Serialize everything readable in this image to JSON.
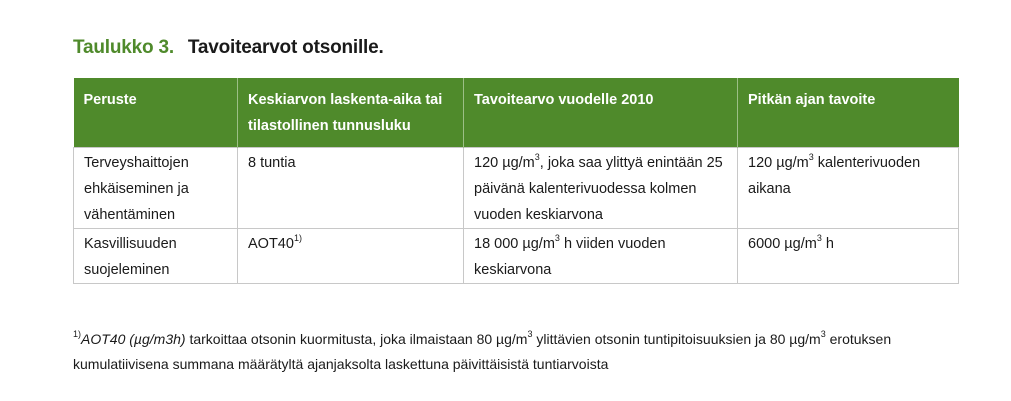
{
  "caption": {
    "number": "Taulukko 3.",
    "title": "Tavoitearvot otsonille."
  },
  "table": {
    "headers": [
      "Peruste",
      "Keskiarvon laskenta-aika tai tilastollinen tunnusluku",
      "Tavoitearvo vuodelle 2010",
      "Pitkän ajan tavoite"
    ],
    "rows": [
      {
        "peruste": "Terveyshaittojen ehkäiseminen ja vähentäminen",
        "laskenta": "8 tuntia",
        "laskenta_sup": "",
        "tavoite2010_pre": "120 µg/m",
        "tavoite2010_sup": "3",
        "tavoite2010_post": ", joka saa ylittyä enintään 25 päivänä kalenterivuodessa kolmen vuoden keskiarvona",
        "pitka_pre": "120 µg/m",
        "pitka_sup": "3",
        "pitka_post": " kalenterivuoden aikana"
      },
      {
        "peruste": "Kasvillisuuden suojeleminen",
        "laskenta": "AOT40",
        "laskenta_sup": "1)",
        "tavoite2010_pre": "18 000 µg/m",
        "tavoite2010_sup": "3",
        "tavoite2010_post": " h viiden vuoden keskiarvona",
        "pitka_pre": "6000 µg/m",
        "pitka_sup": "3",
        "pitka_post": " h"
      }
    ]
  },
  "footnote": {
    "mark": "1)",
    "term": "AOT40 (µg/m3h)",
    "text_a": " tarkoittaa otsonin kuormitusta, joka ilmaistaan 80 µg/m",
    "sup_a": "3",
    "text_b": " ylittävien otsonin tuntipitoisuuksien ja 80 µg/m",
    "sup_b": "3",
    "text_c": " erotuksen kumulatiivisena summana määrätyltä ajanjaksolta laskettuna päivittäisistä tuntiarvoista"
  }
}
